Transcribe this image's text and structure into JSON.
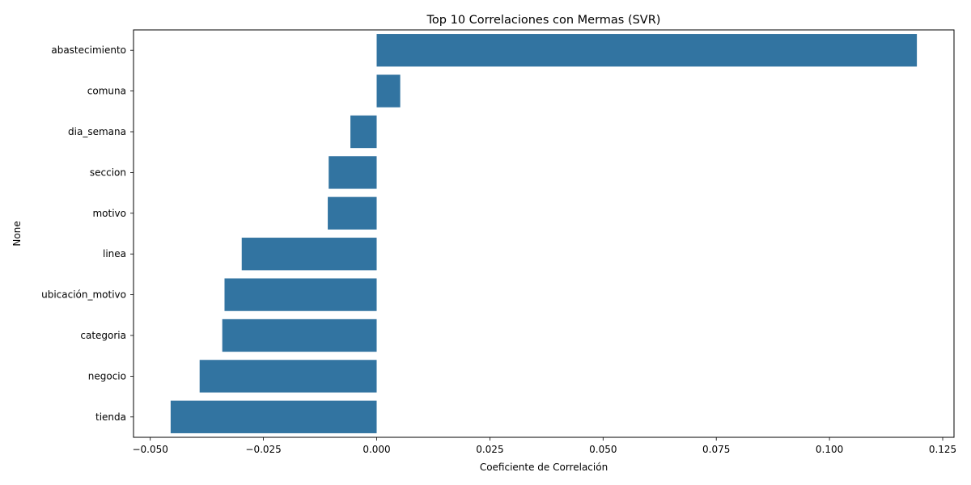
{
  "chart_data": {
    "type": "bar",
    "orientation": "horizontal",
    "title": "Top 10 Correlaciones con Mermas (SVR)",
    "xlabel": "Coeficiente de Correlación",
    "ylabel": "None",
    "categories": [
      "abastecimiento",
      "comuna",
      "dia_semana",
      "seccion",
      "motivo",
      "linea",
      "ubicación_motivo",
      "categoria",
      "negocio",
      "tienda"
    ],
    "values": [
      0.1193,
      0.0052,
      -0.0058,
      -0.0106,
      -0.0108,
      -0.0298,
      -0.0336,
      -0.0341,
      -0.0391,
      -0.0455
    ],
    "xlim": [
      -0.0537,
      0.1275
    ],
    "xticks": [
      -0.05,
      -0.025,
      0.0,
      0.025,
      0.05,
      0.075,
      0.1,
      0.125
    ],
    "xtick_labels": [
      "−0.050",
      "−0.025",
      "0.000",
      "0.025",
      "0.050",
      "0.075",
      "0.100",
      "0.125"
    ],
    "bar_color": "#3274a1",
    "grid": false,
    "legend": "none"
  }
}
